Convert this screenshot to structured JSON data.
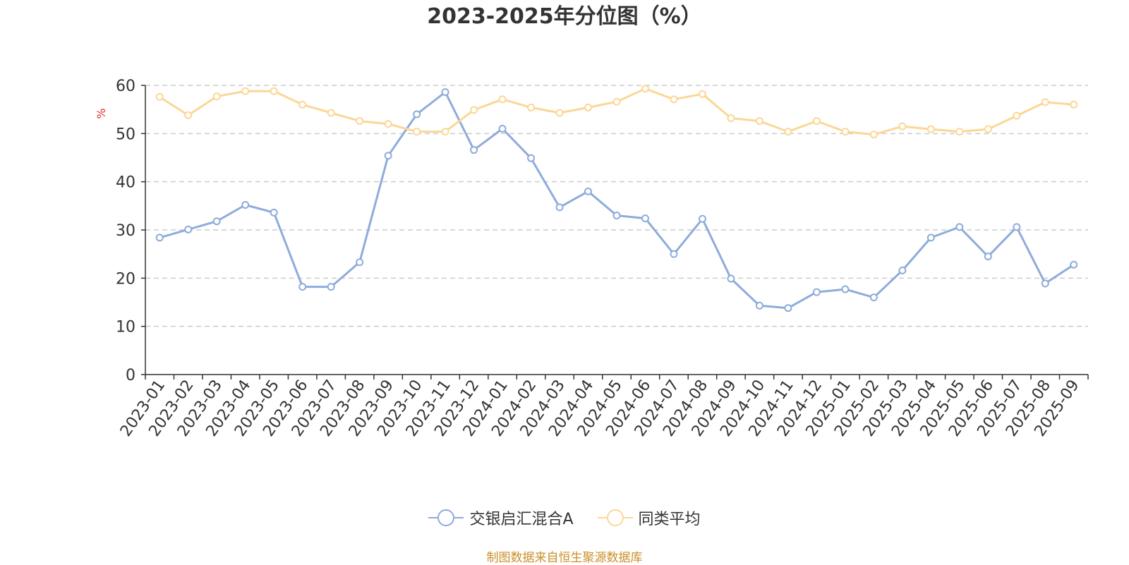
{
  "chart_data": {
    "type": "line",
    "title": "2023-2025年分位图（%）",
    "ylabel": "%",
    "ylim": [
      0,
      60
    ],
    "yticks": [
      0,
      10,
      20,
      30,
      40,
      50,
      60
    ],
    "grid": true,
    "legend_position": "bottom-center",
    "categories": [
      "2023-01",
      "2023-02",
      "2023-03",
      "2023-04",
      "2023-05",
      "2023-06",
      "2023-07",
      "2023-08",
      "2023-09",
      "2023-10",
      "2023-11",
      "2023-12",
      "2024-01",
      "2024-02",
      "2024-03",
      "2024-04",
      "2024-05",
      "2024-06",
      "2024-07",
      "2024-08",
      "2024-09",
      "2024-10",
      "2024-11",
      "2024-12",
      "2025-01",
      "2025-02",
      "2025-03",
      "2025-04",
      "2025-05",
      "2025-06",
      "2025-07",
      "2025-08",
      "2025-09"
    ],
    "series": [
      {
        "name": "交银启汇混合A",
        "color": "#8eacdb",
        "values": [
          28.4,
          30.1,
          31.8,
          35.2,
          33.6,
          18.2,
          18.2,
          23.3,
          45.4,
          54.0,
          58.6,
          46.6,
          51.0,
          44.9,
          34.7,
          38.0,
          33.0,
          32.4,
          25.0,
          32.3,
          19.9,
          14.3,
          13.8,
          17.1,
          17.7,
          16.0,
          21.6,
          28.4,
          30.6,
          24.5,
          30.6,
          18.9,
          22.8
        ]
      },
      {
        "name": "同类平均",
        "color": "#fbd796",
        "values": [
          57.6,
          53.8,
          57.7,
          58.8,
          58.8,
          56.0,
          54.3,
          52.6,
          52.0,
          50.4,
          50.4,
          54.9,
          57.1,
          55.4,
          54.3,
          55.4,
          56.6,
          59.3,
          57.1,
          58.2,
          53.2,
          52.6,
          50.4,
          52.6,
          50.4,
          49.8,
          51.5,
          50.9,
          50.4,
          50.9,
          53.7,
          56.5,
          56.0
        ]
      }
    ]
  },
  "source_note": "制图数据来自恒生聚源数据库"
}
